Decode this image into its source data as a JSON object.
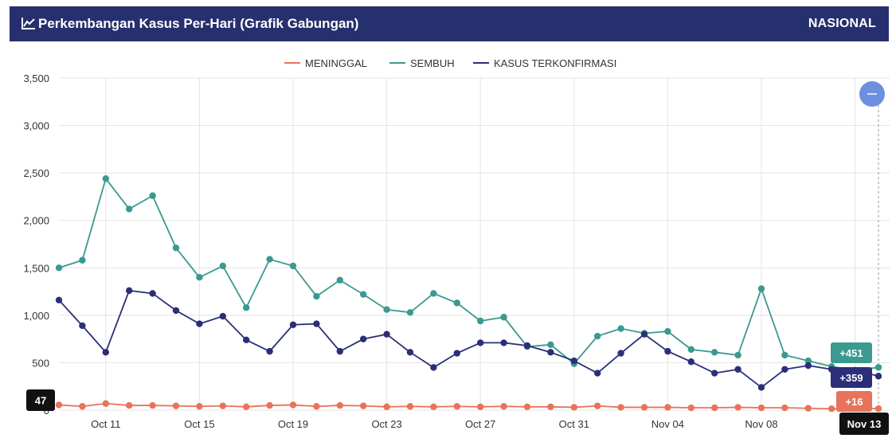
{
  "header": {
    "title": "Perkembangan Kasus Per-Hari (Grafik Gabungan)",
    "region": "NASIONAL"
  },
  "colors": {
    "header_bg": "#27306e",
    "meninggal": "#e8735a",
    "sembuh": "#3a9a8f",
    "konfirmasi": "#2b2f78",
    "zoom_button": "#6d8fe0"
  },
  "icons": {
    "title_icon": "line-chart-icon",
    "zoom_button_icon": "minus-icon"
  },
  "chart_data": {
    "type": "line",
    "x_start": "Oct 09",
    "x_end": "Nov 13",
    "ylim": [
      0,
      3500
    ],
    "ylabel": "",
    "xlabel": "",
    "y_ticks": [
      "0",
      "500",
      "1,000",
      "1,500",
      "2,000",
      "2,500",
      "3,000",
      "3,500"
    ],
    "x_ticks": [
      "Oct 11",
      "Oct 15",
      "Oct 19",
      "Oct 23",
      "Oct 27",
      "Oct 31",
      "Nov 04",
      "Nov 08",
      "Nov 12"
    ],
    "legend_position": "top-center",
    "grid": true,
    "series": [
      {
        "name": "MENINGGAL",
        "values": [
          55,
          40,
          70,
          50,
          50,
          45,
          40,
          45,
          35,
          50,
          55,
          40,
          50,
          45,
          35,
          40,
          35,
          40,
          35,
          40,
          35,
          35,
          30,
          45,
          30,
          30,
          30,
          25,
          25,
          30,
          25,
          25,
          20,
          15,
          25,
          16
        ]
      },
      {
        "name": "SEMBUH",
        "values": [
          1500,
          1580,
          2440,
          2120,
          2260,
          1710,
          1400,
          1520,
          1080,
          1590,
          1520,
          1200,
          1370,
          1220,
          1060,
          1030,
          1230,
          1130,
          940,
          980,
          670,
          690,
          490,
          780,
          860,
          810,
          830,
          640,
          610,
          580,
          1280,
          580,
          520,
          460,
          420,
          451
        ]
      },
      {
        "name": "KASUS TERKONFIRMASI",
        "values": [
          1160,
          890,
          610,
          1260,
          1230,
          1050,
          910,
          990,
          740,
          620,
          900,
          910,
          620,
          750,
          800,
          610,
          450,
          600,
          710,
          710,
          680,
          610,
          520,
          390,
          600,
          800,
          620,
          510,
          390,
          430,
          240,
          430,
          470,
          430,
          420,
          359
        ]
      }
    ],
    "annotations": {
      "left_value": "47",
      "sembuh_last": "+451",
      "konfirmasi_last": "+359",
      "meninggal_last": "+16",
      "crosshair_date": "Nov 13"
    }
  }
}
